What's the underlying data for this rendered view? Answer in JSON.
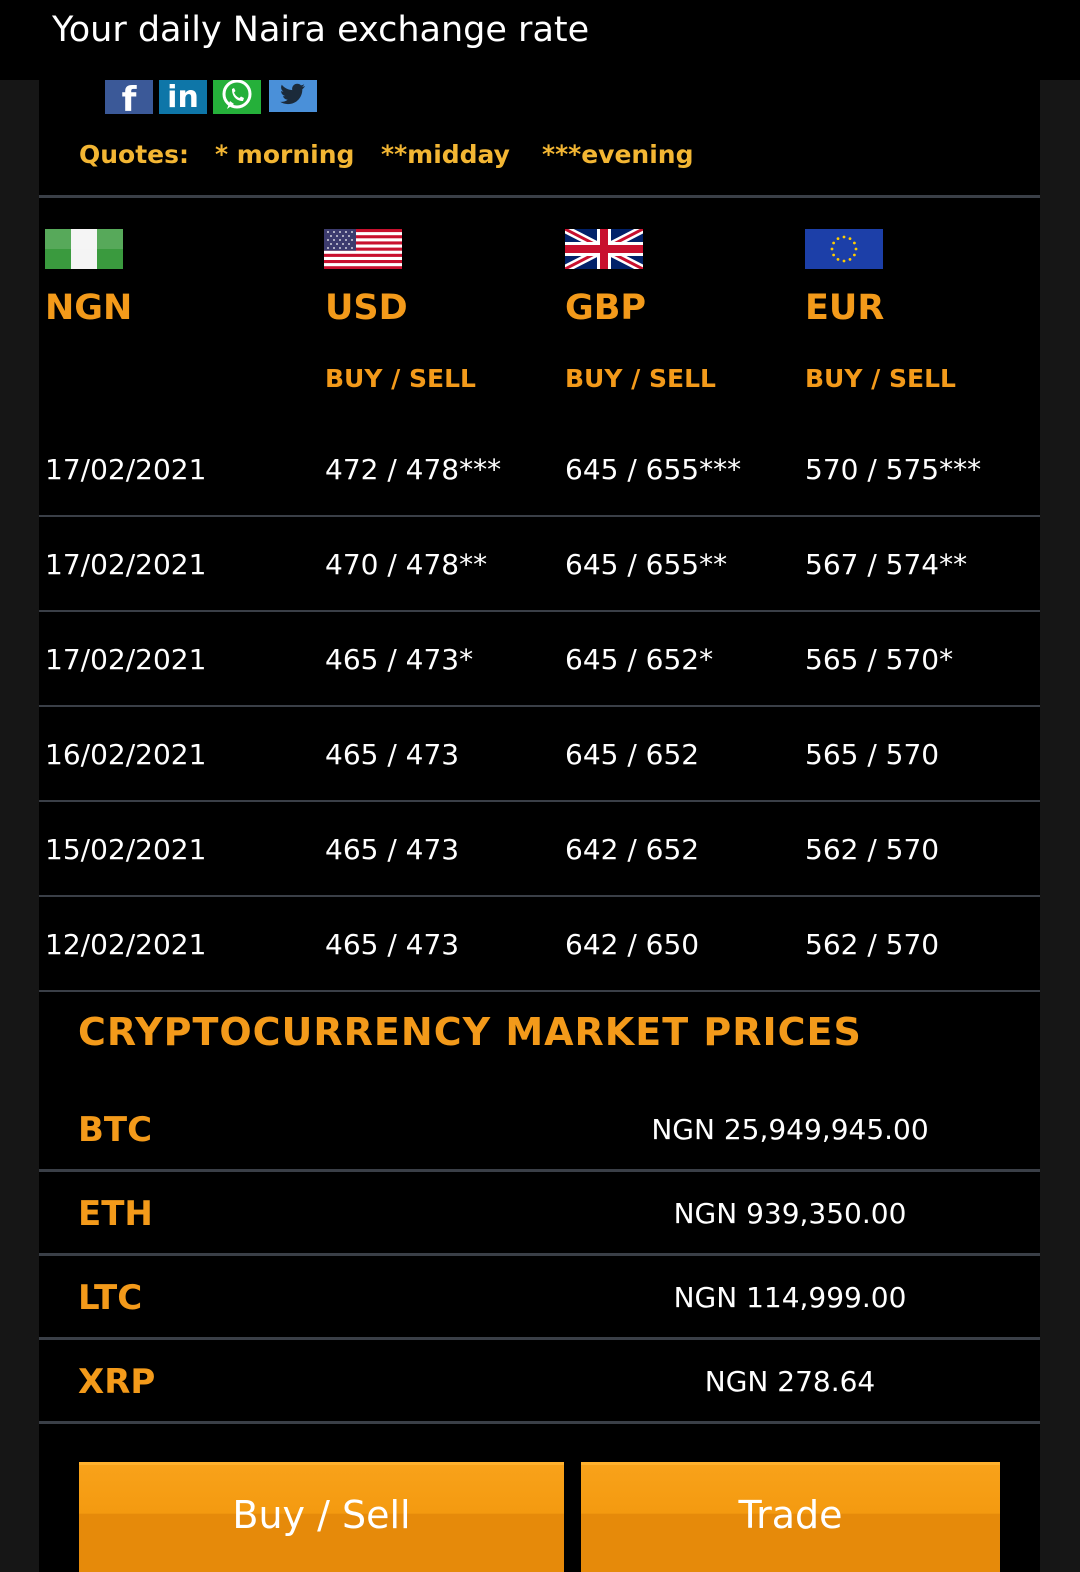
{
  "header": {
    "title": "Your daily Naira exchange rate"
  },
  "share": {
    "facebook_label": "f",
    "linkedin_label": "in",
    "twitter_label": "t"
  },
  "quotes": {
    "label": "Quotes:",
    "morning": "* morning",
    "midday": "**midday",
    "evening": "***evening"
  },
  "currencies": [
    {
      "code": "NGN",
      "subheader": "",
      "flag": "nigeria-flag-icon"
    },
    {
      "code": "USD",
      "subheader": "BUY / SELL",
      "flag": "usa-flag-icon"
    },
    {
      "code": "GBP",
      "subheader": "BUY / SELL",
      "flag": "uk-flag-icon"
    },
    {
      "code": "EUR",
      "subheader": "BUY / SELL",
      "flag": "eu-flag-icon"
    }
  ],
  "rates": [
    {
      "date": "17/02/2021",
      "usd": "472 / 478***",
      "gbp": "645 / 655***",
      "eur": "570 / 575***"
    },
    {
      "date": "17/02/2021",
      "usd": "470 / 478**",
      "gbp": "645 / 655**",
      "eur": "567 / 574**"
    },
    {
      "date": "17/02/2021",
      "usd": "465 / 473*",
      "gbp": "645 / 652*",
      "eur": "565 / 570*"
    },
    {
      "date": "16/02/2021",
      "usd": "465 / 473",
      "gbp": "645 / 652",
      "eur": "565 / 570"
    },
    {
      "date": "15/02/2021",
      "usd": "465 / 473",
      "gbp": "642 / 652",
      "eur": "562 / 570"
    },
    {
      "date": "12/02/2021",
      "usd": "465 / 473",
      "gbp": "642 / 650",
      "eur": "562 / 570"
    }
  ],
  "crypto": {
    "title": "CRYPTOCURRENCY MARKET PRICES",
    "items": [
      {
        "symbol": "BTC",
        "price": "NGN 25,949,945.00"
      },
      {
        "symbol": "ETH",
        "price": "NGN 939,350.00"
      },
      {
        "symbol": "LTC",
        "price": "NGN 114,999.00"
      },
      {
        "symbol": "XRP",
        "price": "NGN 278.64"
      }
    ]
  },
  "actions": {
    "buy_sell": "Buy / Sell",
    "trade": "Trade"
  },
  "colors": {
    "accent_orange": "#f39a1a",
    "quotes_gold": "#f3b633",
    "button_orange": "#f49a10",
    "divider": "#3a3f47",
    "background": "#000000"
  }
}
